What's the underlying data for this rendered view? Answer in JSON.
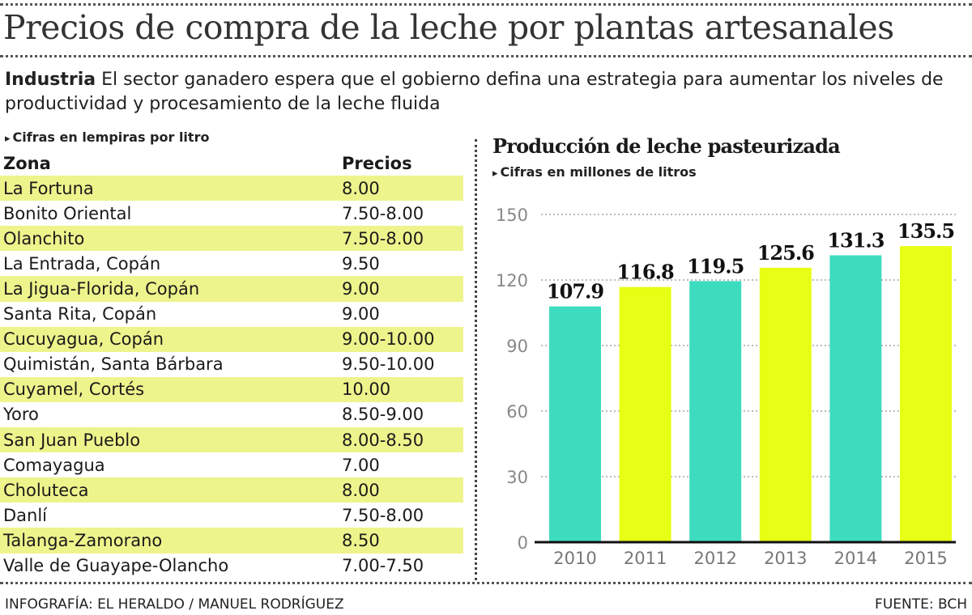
{
  "title": "Precios de compra de la leche por plantas artesanales",
  "intro": {
    "lead": "Industria",
    "text": " El sector ganadero espera que el gobierno defina una estrategia para aumentar los niveles de productividad y procesamiento de la leche fluida"
  },
  "table": {
    "note": "Cifras en lempiras por litro",
    "headers": [
      "Zona",
      "Precios"
    ],
    "rows": [
      [
        "La Fortuna",
        "8.00"
      ],
      [
        "Bonito Oriental",
        "7.50-8.00"
      ],
      [
        "Olanchito",
        "7.50-8.00"
      ],
      [
        "La Entrada, Copán",
        "9.50"
      ],
      [
        "La Jigua-Florida, Copán",
        "9.00"
      ],
      [
        "Santa Rita, Copán",
        "9.00"
      ],
      [
        "Cucuyagua, Copán",
        "9.00-10.00"
      ],
      [
        "Quimistán, Santa Bárbara",
        "9.50-10.00"
      ],
      [
        "Cuyamel, Cortés",
        "10.00"
      ],
      [
        "Yoro",
        "8.50-9.00"
      ],
      [
        "San Juan Pueblo",
        "8.00-8.50"
      ],
      [
        "Comayagua",
        "7.00"
      ],
      [
        "Choluteca",
        "8.00"
      ],
      [
        "Danlí",
        "7.50-8.00"
      ],
      [
        "Talanga-Zamorano",
        "8.50"
      ],
      [
        "Valle de Guayape-Olancho",
        "7.00-7.50"
      ]
    ],
    "highlight_color": "#eef48c"
  },
  "chart_data": {
    "type": "bar",
    "title": "Producción de leche pasteurizada",
    "subtitle": "Cifras en millones de litros",
    "categories": [
      "2010",
      "2011",
      "2012",
      "2013",
      "2014",
      "2015"
    ],
    "values": [
      107.9,
      116.8,
      119.5,
      125.6,
      131.3,
      135.5
    ],
    "value_labels": [
      "107.9",
      "116.8",
      "119.5",
      "125.6",
      "131.3",
      "135.5"
    ],
    "bar_colors": [
      "#3ddcbf",
      "#e6ff14",
      "#3ddcbf",
      "#e6ff14",
      "#3ddcbf",
      "#e6ff14"
    ],
    "ylim": [
      0,
      150
    ],
    "yticks": [
      0,
      30,
      60,
      90,
      120,
      150
    ],
    "grid": true,
    "xlabel": "",
    "ylabel": ""
  },
  "footer": {
    "credit": "INFOGRAFÍA: EL HERALDO / MANUEL RODRÍGUEZ",
    "source": "FUENTE: BCH"
  }
}
